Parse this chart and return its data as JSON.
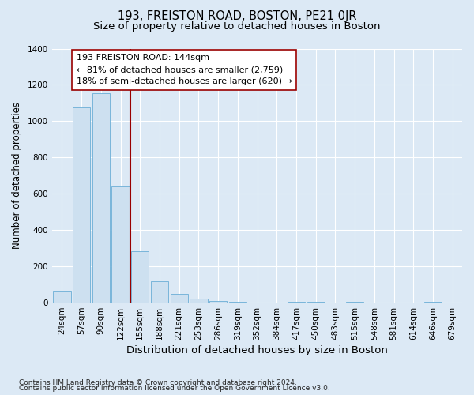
{
  "title": "193, FREISTON ROAD, BOSTON, PE21 0JR",
  "subtitle": "Size of property relative to detached houses in Boston",
  "xlabel": "Distribution of detached houses by size in Boston",
  "ylabel": "Number of detached properties",
  "footnote1": "Contains HM Land Registry data © Crown copyright and database right 2024.",
  "footnote2": "Contains public sector information licensed under the Open Government Licence v3.0.",
  "bar_labels": [
    "24sqm",
    "57sqm",
    "90sqm",
    "122sqm",
    "155sqm",
    "188sqm",
    "221sqm",
    "253sqm",
    "286sqm",
    "319sqm",
    "352sqm",
    "384sqm",
    "417sqm",
    "450sqm",
    "483sqm",
    "515sqm",
    "548sqm",
    "581sqm",
    "614sqm",
    "646sqm",
    "679sqm"
  ],
  "bar_values": [
    65,
    1075,
    1155,
    640,
    285,
    120,
    48,
    20,
    10,
    5,
    0,
    0,
    3,
    3,
    0,
    3,
    0,
    0,
    0,
    3,
    0
  ],
  "bar_color": "#cde0f0",
  "bar_edge_color": "#6aaed6",
  "vline_x": 3.5,
  "vline_color": "#990000",
  "ann_line1": "193 FREISTON ROAD: 144sqm",
  "ann_line2": "← 81% of detached houses are smaller (2,759)",
  "ann_line3": "18% of semi-detached houses are larger (620) →",
  "annotation_box_edge": "#990000",
  "ylim": [
    0,
    1400
  ],
  "yticks": [
    0,
    200,
    400,
    600,
    800,
    1000,
    1200,
    1400
  ],
  "bg_color": "#dce9f5",
  "plot_bg_color": "#dce9f5",
  "title_fontsize": 10.5,
  "subtitle_fontsize": 9.5,
  "xlabel_fontsize": 9.5,
  "ylabel_fontsize": 8.5,
  "tick_fontsize": 7.5,
  "footnote_fontsize": 6.5
}
